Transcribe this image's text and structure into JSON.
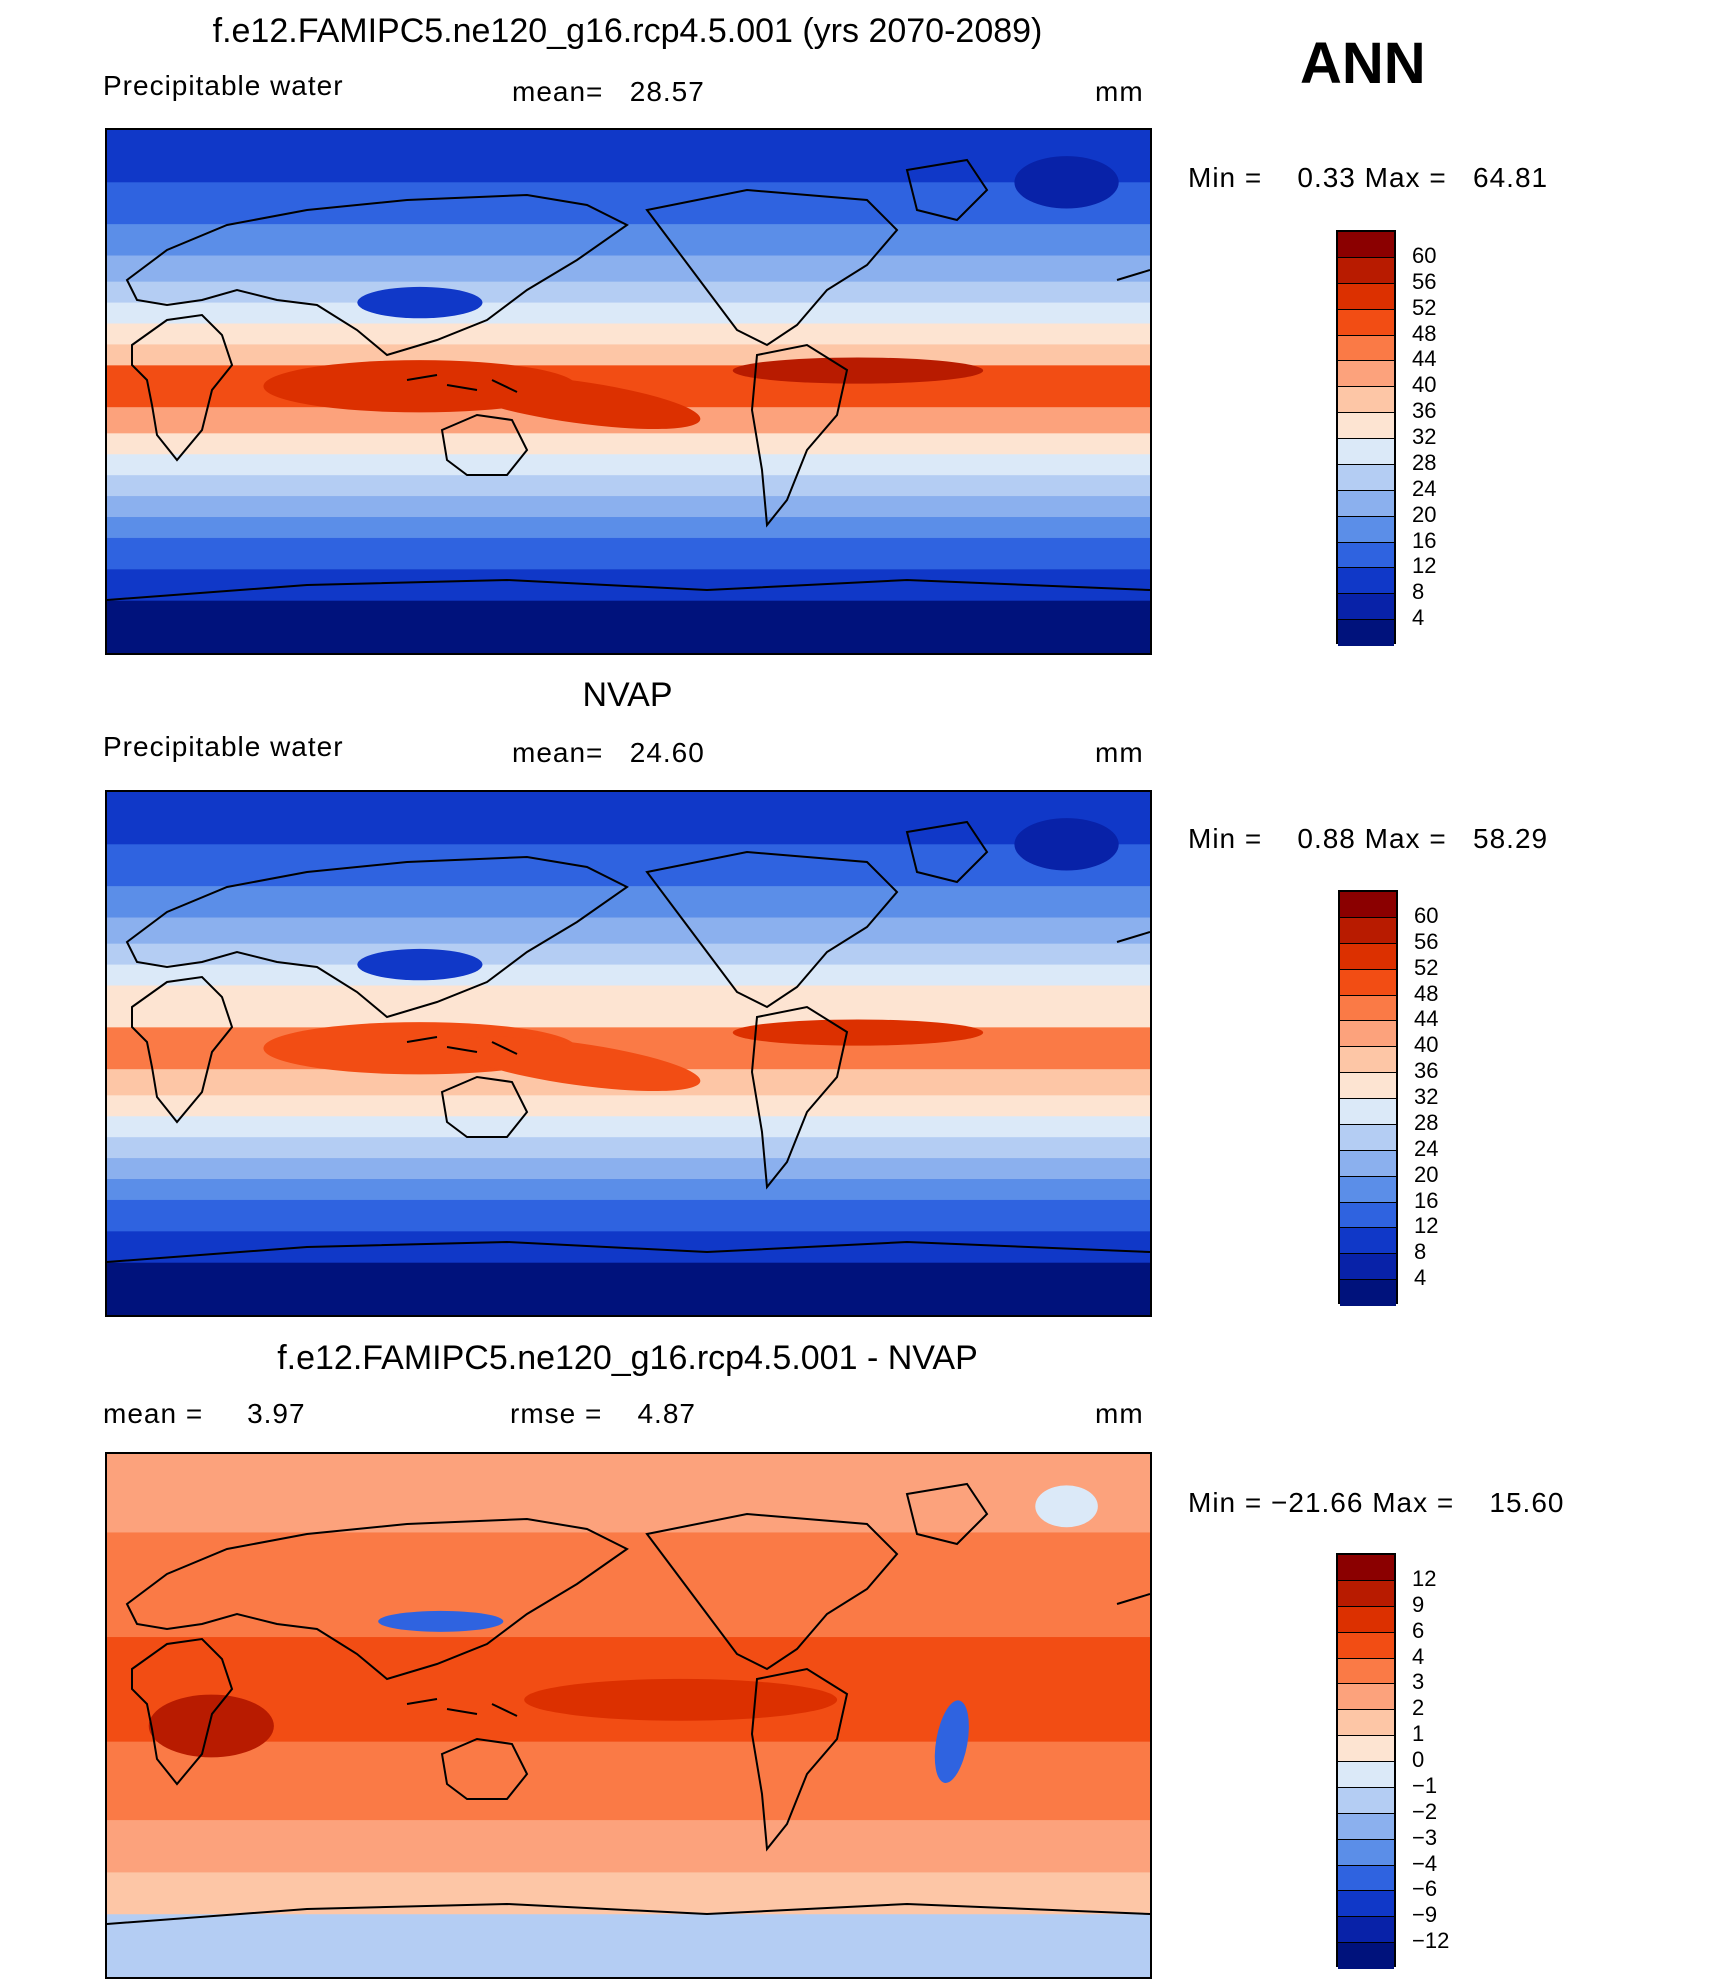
{
  "season": "ANN",
  "panels": [
    {
      "id": "model",
      "title": "f.e12.FAMIPC5.ne120_g16.rcp4.5.001 (yrs 2070-2089)",
      "left_label": "Precipitable water",
      "stat_label": "mean=",
      "stat_value": "28.57",
      "stat2_label": "",
      "stat2_value": "",
      "units": "mm",
      "min_label": "Min =",
      "min_value": "0.33",
      "max_label": "Max =",
      "max_value": "64.81",
      "levels": [
        "60",
        "56",
        "52",
        "48",
        "44",
        "40",
        "36",
        "32",
        "28",
        "24",
        "20",
        "16",
        "12",
        "8",
        "4"
      ],
      "colors": [
        "#8b0000",
        "#b81b00",
        "#dc3000",
        "#f24d14",
        "#fa7a46",
        "#fca27c",
        "#fdc6a6",
        "#fde4d2",
        "#dbe9f8",
        "#b4cdf3",
        "#8bb0ee",
        "#5b8ee8",
        "#2f63e0",
        "#1038c8",
        "#0822a8",
        "#00127c"
      ]
    },
    {
      "id": "obs",
      "title": "NVAP",
      "left_label": "Precipitable water",
      "stat_label": "mean=",
      "stat_value": "24.60",
      "stat2_label": "",
      "stat2_value": "",
      "units": "mm",
      "min_label": "Min =",
      "min_value": "0.88",
      "max_label": "Max =",
      "max_value": "58.29",
      "levels": [
        "60",
        "56",
        "52",
        "48",
        "44",
        "40",
        "36",
        "32",
        "28",
        "24",
        "20",
        "16",
        "12",
        "8",
        "4"
      ],
      "colors": [
        "#8b0000",
        "#b81b00",
        "#dc3000",
        "#f24d14",
        "#fa7a46",
        "#fca27c",
        "#fdc6a6",
        "#fde4d2",
        "#dbe9f8",
        "#b4cdf3",
        "#8bb0ee",
        "#5b8ee8",
        "#2f63e0",
        "#1038c8",
        "#0822a8",
        "#00127c"
      ]
    },
    {
      "id": "diff",
      "title": "f.e12.FAMIPC5.ne120_g16.rcp4.5.001 - NVAP",
      "left_label": "mean =",
      "left_value": "3.97",
      "stat_label": "rmse =",
      "stat_value": "4.87",
      "units": "mm",
      "min_label": "Min =",
      "min_value": "−21.66",
      "max_label": "Max =",
      "max_value": "15.60",
      "levels": [
        "12",
        "9",
        "6",
        "4",
        "3",
        "2",
        "1",
        "0",
        "−1",
        "−2",
        "−3",
        "−4",
        "−6",
        "−9",
        "−12"
      ],
      "colors": [
        "#8b0000",
        "#b81b00",
        "#dc3000",
        "#f24d14",
        "#fa7a46",
        "#fca27c",
        "#fdc6a6",
        "#fde4d2",
        "#dbe9f8",
        "#b4cdf3",
        "#8bb0ee",
        "#5b8ee8",
        "#2f63e0",
        "#1038c8",
        "#0822a8",
        "#00127c"
      ]
    }
  ],
  "chart_data": [
    {
      "type": "heatmap",
      "title": "f.e12.FAMIPC5.ne120_g16.rcp4.5.001 (yrs 2070-2089)",
      "variable": "Precipitable water",
      "units": "mm",
      "mean": 28.57,
      "min": 0.33,
      "max": 64.81,
      "contour_levels": [
        4,
        8,
        12,
        16,
        20,
        24,
        28,
        32,
        36,
        40,
        44,
        48,
        52,
        56,
        60
      ]
    },
    {
      "type": "heatmap",
      "title": "NVAP",
      "variable": "Precipitable water",
      "units": "mm",
      "mean": 24.6,
      "min": 0.88,
      "max": 58.29,
      "contour_levels": [
        4,
        8,
        12,
        16,
        20,
        24,
        28,
        32,
        36,
        40,
        44,
        48,
        52,
        56,
        60
      ]
    },
    {
      "type": "heatmap",
      "title": "f.e12.FAMIPC5.ne120_g16.rcp4.5.001 - NVAP",
      "units": "mm",
      "mean": 3.97,
      "rmse": 4.87,
      "min": -21.66,
      "max": 15.6,
      "contour_levels": [
        -12,
        -9,
        -6,
        -4,
        -3,
        -2,
        -1,
        0,
        1,
        2,
        3,
        4,
        6,
        9,
        12
      ]
    }
  ]
}
